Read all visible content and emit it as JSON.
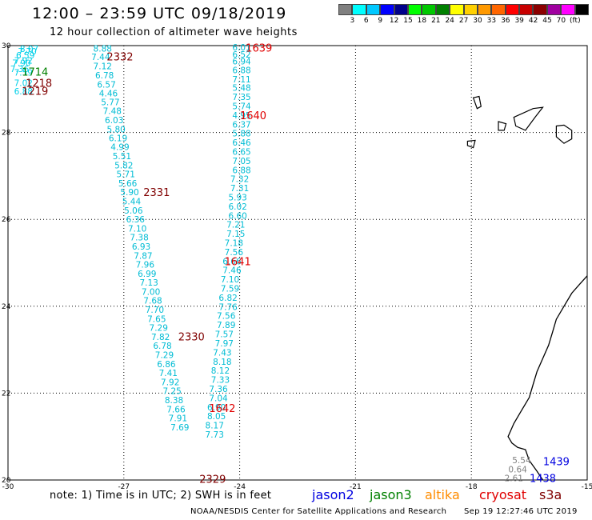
{
  "header": {
    "title": "12:00 – 23:59 UTC 09/18/2019",
    "subtitle": "12 hour collection of altimeter wave heights"
  },
  "color_scale": {
    "colors": [
      "#808080",
      "#00ffff",
      "#00c8ff",
      "#0000ff",
      "#00008b",
      "#00ff00",
      "#00c800",
      "#008000",
      "#ffff00",
      "#ffd000",
      "#ff9900",
      "#ff6600",
      "#ff0000",
      "#c80000",
      "#8b0000",
      "#a000a0",
      "#ff00ff",
      "#000000"
    ],
    "labels": [
      "3",
      "6",
      "9",
      "12",
      "15",
      "18",
      "21",
      "24",
      "27",
      "30",
      "33",
      "36",
      "39",
      "42",
      "45",
      "70",
      "(ft)"
    ]
  },
  "map": {
    "lon_min": -30,
    "lon_max": -15,
    "lat_min": 20,
    "lat_max": 30,
    "lon_ticks": [
      -30,
      -27,
      -24,
      -21,
      -18,
      -15
    ],
    "lat_ticks": [
      30,
      28,
      26,
      24,
      22,
      20
    ],
    "lon_tick_labels": [
      "-30",
      "-27",
      "-24",
      "-21",
      "-18",
      "-15"
    ],
    "lat_tick_labels": [
      "30",
      "28",
      "26",
      "24",
      "22",
      "20"
    ]
  },
  "tracks": [
    {
      "satellite": "jason3",
      "color": "#00d0e8",
      "label_color": "#00d0e8",
      "points": [
        {
          "lon": -29.45,
          "lat": 29.93,
          "swh": "8.07"
        },
        {
          "lon": -29.5,
          "lat": 29.87,
          "swh": "7.70"
        },
        {
          "lon": -29.55,
          "lat": 29.78,
          "swh": "6.59"
        },
        {
          "lon": -29.6,
          "lat": 29.66,
          "swh": "7.92"
        },
        {
          "lon": -29.65,
          "lat": 29.6,
          "swh": "7.90"
        },
        {
          "lon": -29.7,
          "lat": 29.47,
          "swh": "7.36"
        },
        {
          "lon": -29.6,
          "lat": 29.38,
          "swh": "7.59"
        },
        {
          "lon": -29.6,
          "lat": 29.14,
          "swh": "7.02"
        },
        {
          "lon": -29.6,
          "lat": 28.95,
          "swh": "6.88"
        }
      ]
    },
    {
      "satellite": "jason3",
      "color": "#00bcd4",
      "label_color": "#00bcd4",
      "points": [
        {
          "lon": -27.55,
          "lat": 29.94,
          "swh": "8.88"
        },
        {
          "lon": -27.6,
          "lat": 29.74,
          "swh": "7.44"
        },
        {
          "lon": -27.55,
          "lat": 29.53,
          "swh": "7.12"
        },
        {
          "lon": -27.5,
          "lat": 29.32,
          "swh": "6.78"
        },
        {
          "lon": -27.45,
          "lat": 29.11,
          "swh": "6.57"
        },
        {
          "lon": -27.4,
          "lat": 28.9,
          "swh": "4.46"
        },
        {
          "lon": -27.35,
          "lat": 28.7,
          "swh": "5.77"
        },
        {
          "lon": -27.3,
          "lat": 28.5,
          "swh": "7.48"
        },
        {
          "lon": -27.25,
          "lat": 28.29,
          "swh": "6.03"
        },
        {
          "lon": -27.2,
          "lat": 28.08,
          "swh": "5.80"
        },
        {
          "lon": -27.15,
          "lat": 27.87,
          "swh": "6.19"
        },
        {
          "lon": -27.1,
          "lat": 27.67,
          "swh": "4.99"
        },
        {
          "lon": -27.05,
          "lat": 27.46,
          "swh": "5.51"
        },
        {
          "lon": -27.0,
          "lat": 27.25,
          "swh": "5.82"
        },
        {
          "lon": -26.95,
          "lat": 27.04,
          "swh": "5.71"
        },
        {
          "lon": -26.9,
          "lat": 26.83,
          "swh": "5.66"
        },
        {
          "lon": -26.85,
          "lat": 26.63,
          "swh": "5.90"
        },
        {
          "lon": -26.8,
          "lat": 26.42,
          "swh": "5.44"
        },
        {
          "lon": -26.75,
          "lat": 26.21,
          "swh": "5.06"
        },
        {
          "lon": -26.7,
          "lat": 26.0,
          "swh": "6.36"
        },
        {
          "lon": -26.65,
          "lat": 25.79,
          "swh": "7.10"
        },
        {
          "lon": -26.6,
          "lat": 25.59,
          "swh": "7.38"
        },
        {
          "lon": -26.55,
          "lat": 25.38,
          "swh": "6.93"
        },
        {
          "lon": -26.5,
          "lat": 25.17,
          "swh": "7.87"
        },
        {
          "lon": -26.45,
          "lat": 24.96,
          "swh": "7.96"
        },
        {
          "lon": -26.4,
          "lat": 24.75,
          "swh": "6.99"
        },
        {
          "lon": -26.35,
          "lat": 24.55,
          "swh": "7.13"
        },
        {
          "lon": -26.3,
          "lat": 24.34,
          "swh": "7.00"
        },
        {
          "lon": -26.25,
          "lat": 24.13,
          "swh": "7.68"
        },
        {
          "lon": -26.2,
          "lat": 23.92,
          "swh": "7.70"
        },
        {
          "lon": -26.15,
          "lat": 23.71,
          "swh": "7.65"
        },
        {
          "lon": -26.1,
          "lat": 23.51,
          "swh": "7.29"
        },
        {
          "lon": -26.05,
          "lat": 23.3,
          "swh": "7.82"
        },
        {
          "lon": -26.0,
          "lat": 23.09,
          "swh": "6.78"
        },
        {
          "lon": -25.95,
          "lat": 22.88,
          "swh": "7.29"
        },
        {
          "lon": -25.9,
          "lat": 22.67,
          "swh": "6.86"
        },
        {
          "lon": -25.85,
          "lat": 22.47,
          "swh": "7.41"
        },
        {
          "lon": -25.8,
          "lat": 22.26,
          "swh": "7.92"
        },
        {
          "lon": -25.75,
          "lat": 22.05,
          "swh": "7.25"
        },
        {
          "lon": -25.7,
          "lat": 21.84,
          "swh": "8.38"
        },
        {
          "lon": -25.65,
          "lat": 21.63,
          "swh": "7.66"
        },
        {
          "lon": -25.6,
          "lat": 21.43,
          "swh": "7.91"
        },
        {
          "lon": -25.55,
          "lat": 21.22,
          "swh": "7.69"
        }
      ]
    },
    {
      "satellite": "jason3",
      "color": "#00bcd4",
      "label_color": "#00bcd4",
      "points": [
        {
          "lon": -23.95,
          "lat": 29.96,
          "swh": "6.01"
        },
        {
          "lon": -23.95,
          "lat": 29.8,
          "swh": "6.52"
        },
        {
          "lon": -23.95,
          "lat": 29.64,
          "swh": "6.94"
        },
        {
          "lon": -23.95,
          "lat": 29.44,
          "swh": "6.88"
        },
        {
          "lon": -23.95,
          "lat": 29.23,
          "swh": "7.11"
        },
        {
          "lon": -23.95,
          "lat": 29.03,
          "swh": "5.48"
        },
        {
          "lon": -23.95,
          "lat": 28.82,
          "swh": "7.35"
        },
        {
          "lon": -23.95,
          "lat": 28.61,
          "swh": "5.74"
        },
        {
          "lon": -23.95,
          "lat": 28.4,
          "swh": "4.95"
        },
        {
          "lon": -23.95,
          "lat": 28.19,
          "swh": "6.37"
        },
        {
          "lon": -23.95,
          "lat": 27.98,
          "swh": "5.88"
        },
        {
          "lon": -23.95,
          "lat": 27.77,
          "swh": "6.46"
        },
        {
          "lon": -23.95,
          "lat": 27.56,
          "swh": "6.65"
        },
        {
          "lon": -23.95,
          "lat": 27.35,
          "swh": "7.05"
        },
        {
          "lon": -23.95,
          "lat": 27.14,
          "swh": "6.88"
        },
        {
          "lon": -24.0,
          "lat": 26.93,
          "swh": "7.32"
        },
        {
          "lon": -24.0,
          "lat": 26.72,
          "swh": "7.31"
        },
        {
          "lon": -24.05,
          "lat": 26.51,
          "swh": "5.93"
        },
        {
          "lon": -24.05,
          "lat": 26.3,
          "swh": "6.02"
        },
        {
          "lon": -24.05,
          "lat": 26.09,
          "swh": "6.60"
        },
        {
          "lon": -24.1,
          "lat": 25.88,
          "swh": "7.21"
        },
        {
          "lon": -24.1,
          "lat": 25.67,
          "swh": "7.15"
        },
        {
          "lon": -24.15,
          "lat": 25.46,
          "swh": "7.18"
        },
        {
          "lon": -24.15,
          "lat": 25.25,
          "swh": "7.56"
        },
        {
          "lon": -24.2,
          "lat": 25.04,
          "swh": "6.66"
        },
        {
          "lon": -24.2,
          "lat": 24.83,
          "swh": "7.46"
        },
        {
          "lon": -24.25,
          "lat": 24.62,
          "swh": "7.10"
        },
        {
          "lon": -24.25,
          "lat": 24.41,
          "swh": "7.59"
        },
        {
          "lon": -24.3,
          "lat": 24.2,
          "swh": "6.82"
        },
        {
          "lon": -24.3,
          "lat": 23.99,
          "swh": "7.76"
        },
        {
          "lon": -24.35,
          "lat": 23.78,
          "swh": "7.56"
        },
        {
          "lon": -24.35,
          "lat": 23.57,
          "swh": "7.89"
        },
        {
          "lon": -24.4,
          "lat": 23.36,
          "swh": "7.57"
        },
        {
          "lon": -24.4,
          "lat": 23.15,
          "swh": "7.97"
        },
        {
          "lon": -24.45,
          "lat": 22.94,
          "swh": "7.43"
        },
        {
          "lon": -24.45,
          "lat": 22.73,
          "swh": "8.18"
        },
        {
          "lon": -24.5,
          "lat": 22.52,
          "swh": "8.12"
        },
        {
          "lon": -24.5,
          "lat": 22.31,
          "swh": "7.33"
        },
        {
          "lon": -24.55,
          "lat": 22.1,
          "swh": "7.36"
        },
        {
          "lon": -24.55,
          "lat": 21.89,
          "swh": "7.04"
        },
        {
          "lon": -24.6,
          "lat": 21.68,
          "swh": "6.90"
        },
        {
          "lon": -24.6,
          "lat": 21.47,
          "swh": "8.05"
        },
        {
          "lon": -24.65,
          "lat": 21.26,
          "swh": "8.17"
        },
        {
          "lon": -24.65,
          "lat": 21.05,
          "swh": "7.73"
        }
      ]
    },
    {
      "satellite": "jason2",
      "color": "#808080",
      "label_color": "#808080",
      "points": [
        {
          "lon": -16.7,
          "lat": 20.46,
          "swh": "5.54"
        },
        {
          "lon": -16.8,
          "lat": 20.25,
          "swh": "0.64"
        },
        {
          "lon": -16.9,
          "lat": 20.05,
          "swh": "2.61"
        }
      ]
    }
  ],
  "pass_labels": [
    {
      "text": "1639",
      "lon": -23.5,
      "lat": 29.95,
      "color": "#e00000"
    },
    {
      "text": "2332",
      "lon": -27.1,
      "lat": 29.75,
      "color": "#800000"
    },
    {
      "text": "1714",
      "lon": -29.3,
      "lat": 29.4,
      "color": "#008000"
    },
    {
      "text": "1218",
      "lon": -29.2,
      "lat": 29.14,
      "color": "#800000"
    },
    {
      "text": "1219",
      "lon": -29.3,
      "lat": 28.96,
      "color": "#800000"
    },
    {
      "text": "1640",
      "lon": -23.65,
      "lat": 28.4,
      "color": "#e00000"
    },
    {
      "text": "2331",
      "lon": -26.15,
      "lat": 26.63,
      "color": "#800000"
    },
    {
      "text": "1641",
      "lon": -24.05,
      "lat": 25.04,
      "color": "#e00000"
    },
    {
      "text": "2330",
      "lon": -25.25,
      "lat": 23.31,
      "color": "#800000"
    },
    {
      "text": "1642",
      "lon": -24.45,
      "lat": 21.66,
      "color": "#e00000"
    },
    {
      "text": "2329",
      "lon": -24.7,
      "lat": 20.03,
      "color": "#800000"
    },
    {
      "text": "1439",
      "lon": -15.8,
      "lat": 20.43,
      "color": "#0000e0"
    },
    {
      "text": "1438",
      "lon": -16.15,
      "lat": 20.05,
      "color": "#0000e0"
    }
  ],
  "land": {
    "coast_africa": [
      [
        -15.0,
        24.7
      ],
      [
        -15.2,
        24.5
      ],
      [
        -15.4,
        24.3
      ],
      [
        -15.6,
        24.0
      ],
      [
        -15.8,
        23.7
      ],
      [
        -15.9,
        23.4
      ],
      [
        -16.0,
        23.1
      ],
      [
        -16.15,
        22.8
      ],
      [
        -16.3,
        22.5
      ],
      [
        -16.4,
        22.2
      ],
      [
        -16.5,
        21.9
      ],
      [
        -16.7,
        21.6
      ],
      [
        -16.9,
        21.3
      ],
      [
        -17.05,
        21.0
      ],
      [
        -16.95,
        20.85
      ],
      [
        -16.8,
        20.75
      ],
      [
        -16.6,
        20.7
      ],
      [
        -16.5,
        20.45
      ],
      [
        -16.3,
        20.2
      ],
      [
        -16.15,
        20.0
      ]
    ],
    "canary_islands": [
      [
        [
          -17.95,
          28.8
        ],
        [
          -17.8,
          28.83
        ],
        [
          -17.75,
          28.6
        ],
        [
          -17.85,
          28.55
        ],
        [
          -17.95,
          28.8
        ]
      ],
      [
        [
          -17.3,
          28.25
        ],
        [
          -17.1,
          28.2
        ],
        [
          -17.15,
          28.05
        ],
        [
          -17.3,
          28.05
        ],
        [
          -17.3,
          28.25
        ]
      ],
      [
        [
          -18.1,
          27.8
        ],
        [
          -17.9,
          27.82
        ],
        [
          -17.95,
          27.65
        ],
        [
          -18.1,
          27.7
        ],
        [
          -18.1,
          27.8
        ]
      ],
      [
        [
          -16.9,
          28.35
        ],
        [
          -16.4,
          28.55
        ],
        [
          -16.15,
          28.58
        ],
        [
          -16.35,
          28.35
        ],
        [
          -16.6,
          28.05
        ],
        [
          -16.85,
          28.15
        ],
        [
          -16.9,
          28.35
        ]
      ],
      [
        [
          -15.8,
          28.15
        ],
        [
          -15.6,
          28.17
        ],
        [
          -15.4,
          28.05
        ],
        [
          -15.4,
          27.85
        ],
        [
          -15.6,
          27.75
        ],
        [
          -15.8,
          27.9
        ],
        [
          -15.8,
          28.15
        ]
      ]
    ]
  },
  "footer": {
    "note": "note: 1) Time is in UTC; 2) SWH is in feet",
    "satellites": [
      {
        "name": "jason2",
        "color": "#0000e0"
      },
      {
        "name": "jason3",
        "color": "#008000"
      },
      {
        "name": "altika",
        "color": "#ff8c00"
      },
      {
        "name": "cryosat",
        "color": "#e00000"
      },
      {
        "name": "s3a",
        "color": "#800000"
      }
    ],
    "credit": "NOAA/NESDIS Center for Satellite Applications and Research",
    "timestamp": "Sep 19 12:27:46 UTC 2019"
  }
}
